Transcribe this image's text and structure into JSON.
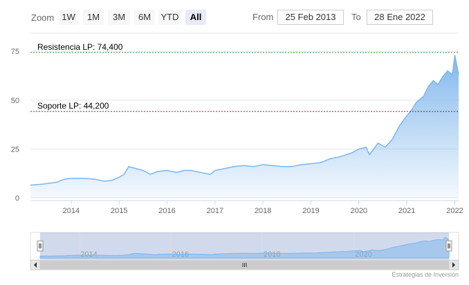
{
  "toolbar": {
    "zoom_label": "Zoom",
    "buttons": [
      "1W",
      "1M",
      "3M",
      "6M",
      "YTD",
      "All"
    ],
    "active_button": "All",
    "from_label": "From",
    "from_value": "25 Feb 2013",
    "to_label": "To",
    "to_value": "28 Ene 2022"
  },
  "credit": "Estrategias de Inversión",
  "colors": {
    "series": "#7cb5ec",
    "resistance": "#2a8a2a",
    "support": "#8b1a1a"
  },
  "chart_data": {
    "type": "area",
    "x_start": 2013.15,
    "x_end": 2022.08,
    "ylim": [
      0,
      80
    ],
    "y_ticks": [
      0,
      25,
      50,
      75
    ],
    "x_tick_labels": [
      "2014",
      "2015",
      "2016",
      "2017",
      "2018",
      "2019",
      "2020",
      "2021",
      "2022"
    ],
    "navigator_tick_labels": [
      "2014",
      "2016",
      "2018",
      "2020"
    ],
    "series": [
      {
        "x": [
          2013.15,
          2013.4,
          2013.7,
          2013.85,
          2014.0,
          2014.3,
          2014.5,
          2014.7,
          2014.85,
          2015.0,
          2015.1,
          2015.2,
          2015.35,
          2015.5,
          2015.65,
          2015.8,
          2016.0,
          2016.2,
          2016.35,
          2016.5,
          2016.7,
          2016.9,
          2017.0,
          2017.2,
          2017.4,
          2017.6,
          2017.8,
          2018.0,
          2018.2,
          2018.4,
          2018.6,
          2018.8,
          2019.0,
          2019.2,
          2019.4,
          2019.6,
          2019.85,
          2020.0,
          2020.15,
          2020.22,
          2020.4,
          2020.55,
          2020.7,
          2020.85,
          2021.0,
          2021.1,
          2021.2,
          2021.35,
          2021.45,
          2021.55,
          2021.65,
          2021.75,
          2021.85,
          2021.95,
          2022.0,
          2022.08
        ],
        "y": [
          6.5,
          7,
          8,
          9.5,
          10,
          10,
          9.5,
          8.5,
          9,
          10.5,
          12,
          16,
          15,
          14,
          12,
          13.5,
          14,
          13,
          14,
          14,
          13,
          12,
          14,
          15,
          16,
          16.5,
          16,
          17,
          16.5,
          16,
          16,
          17,
          17.5,
          18,
          20,
          21,
          23,
          25,
          26,
          22,
          28,
          26,
          30,
          37,
          42,
          45,
          49,
          52,
          57,
          60,
          58,
          62,
          65,
          63,
          73,
          63
        ]
      }
    ],
    "lines": [
      {
        "label": "Resistencia LP: 74,400",
        "value": 74.4
      },
      {
        "label": "Soporte LP: 44,200",
        "value": 44.2
      }
    ]
  }
}
